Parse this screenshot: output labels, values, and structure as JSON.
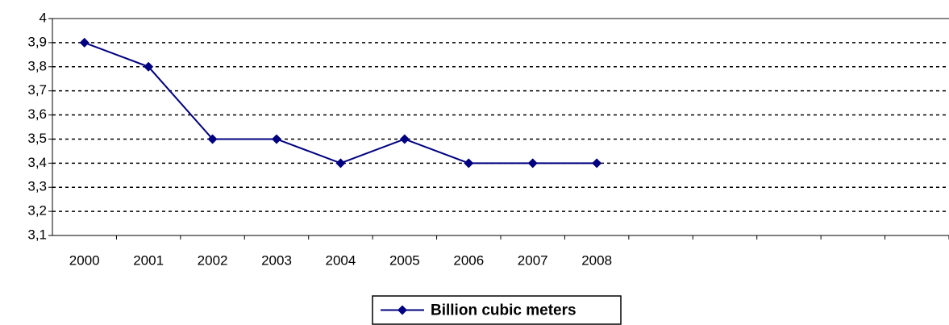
{
  "chart_data": {
    "type": "line",
    "categories": [
      "2000",
      "2001",
      "2002",
      "2003",
      "2004",
      "2005",
      "2006",
      "2007",
      "2008",
      null,
      null,
      null,
      null,
      null
    ],
    "series": [
      {
        "name": "Billion cubic meters",
        "color": "#000080",
        "values": [
          3.9,
          3.8,
          3.5,
          3.5,
          3.4,
          3.5,
          3.4,
          3.4,
          3.4,
          null,
          null,
          null,
          null,
          null
        ]
      }
    ],
    "ylim": [
      3.1,
      4
    ],
    "yticks": [
      {
        "value": 3.1,
        "label": "3,1"
      },
      {
        "value": 3.2,
        "label": "3,2"
      },
      {
        "value": 3.3,
        "label": "3,3"
      },
      {
        "value": 3.4,
        "label": "3,4"
      },
      {
        "value": 3.5,
        "label": "3,5"
      },
      {
        "value": 3.6,
        "label": "3,6"
      },
      {
        "value": 3.7,
        "label": "3,7"
      },
      {
        "value": 3.8,
        "label": "3,8"
      },
      {
        "value": 3.9,
        "label": "3,9"
      },
      4
    ],
    "grid": true,
    "legend": "bottom"
  }
}
